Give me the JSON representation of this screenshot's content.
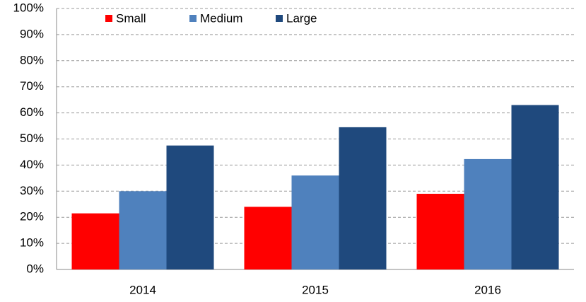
{
  "chart_data": {
    "type": "bar",
    "categories": [
      "2014",
      "2015",
      "2016"
    ],
    "series": [
      {
        "name": "Small",
        "color": "#ff0000",
        "values": [
          21.5,
          24,
          29
        ]
      },
      {
        "name": "Medium",
        "color": "#4f81bd",
        "values": [
          30,
          36,
          42.3
        ]
      },
      {
        "name": "Large",
        "color": "#1f497d",
        "values": [
          47.5,
          54.5,
          63
        ]
      }
    ],
    "ylim": [
      0,
      100
    ],
    "yticks": [
      {
        "value": 0,
        "label": "0%"
      },
      {
        "value": 10,
        "label": "10%"
      },
      {
        "value": 20,
        "label": "20%"
      },
      {
        "value": 30,
        "label": "30%"
      },
      {
        "value": 40,
        "label": "40%"
      },
      {
        "value": 50,
        "label": "50%"
      },
      {
        "value": 60,
        "label": "60%"
      },
      {
        "value": 70,
        "label": "70%"
      },
      {
        "value": 80,
        "label": "80%"
      },
      {
        "value": 90,
        "label": "90%"
      },
      {
        "value": 100,
        "label": "100%"
      }
    ],
    "grid": true,
    "legend": "top"
  }
}
